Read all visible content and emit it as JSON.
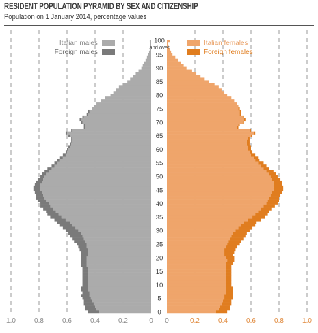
{
  "title": "RESIDENT POPULATION PYRAMID BY SEX AND CITIZENSHIP",
  "subtitle": "Population on 1 January 2014, percentage values",
  "colors": {
    "italian_males": "#ababab",
    "foreign_males": "#7a7a7a",
    "italian_females": "#efa56b",
    "foreign_females": "#e07d1f",
    "text": "#3c3c3c",
    "grid": "#9a9a9a"
  },
  "chart_data": {
    "type": "bar",
    "orientation": "horizontal",
    "title": "RESIDENT POPULATION PYRAMID BY SEX AND CITIZENSHIP",
    "subtitle": "Population on 1 January 2014, percentage values",
    "age_ticks": [
      "0",
      "5",
      "10",
      "15",
      "20",
      "25",
      "30",
      "35",
      "40",
      "45",
      "50",
      "55",
      "60",
      "65",
      "70",
      "75",
      "80",
      "85",
      "90",
      "95",
      "100"
    ],
    "top_age_label": "and over",
    "x_ticks_left": [
      "1.0",
      "0.8",
      "0.6",
      "0.4",
      "0.2",
      "0"
    ],
    "x_ticks_right": [
      "0",
      "0.2",
      "0.4",
      "0.6",
      "0.8",
      "1.0"
    ],
    "xlim": [
      0,
      1.0
    ],
    "grid": "dashed vertical",
    "legend": [
      {
        "side": "left",
        "label": "Italian males",
        "color_key": "italian_males"
      },
      {
        "side": "left",
        "label": "Foreign males",
        "color_key": "foreign_males"
      },
      {
        "side": "right",
        "label": "Italian females",
        "color_key": "italian_females"
      },
      {
        "side": "right",
        "label": "Foreign females",
        "color_key": "foreign_females"
      }
    ],
    "ages": [
      0,
      1,
      2,
      3,
      4,
      5,
      6,
      7,
      8,
      9,
      10,
      11,
      12,
      13,
      14,
      15,
      16,
      17,
      18,
      19,
      20,
      21,
      22,
      23,
      24,
      25,
      26,
      27,
      28,
      29,
      30,
      31,
      32,
      33,
      34,
      35,
      36,
      37,
      38,
      39,
      40,
      41,
      42,
      43,
      44,
      45,
      46,
      47,
      48,
      49,
      50,
      51,
      52,
      53,
      54,
      55,
      56,
      57,
      58,
      59,
      60,
      61,
      62,
      63,
      64,
      65,
      66,
      67,
      68,
      69,
      70,
      71,
      72,
      73,
      74,
      75,
      76,
      77,
      78,
      79,
      80,
      81,
      82,
      83,
      84,
      85,
      86,
      87,
      88,
      89,
      90,
      91,
      92,
      93,
      94,
      95,
      96,
      97,
      98,
      99,
      100
    ],
    "series": [
      {
        "name": "Italian males",
        "side": "left",
        "values": [
          0.37,
          0.39,
          0.4,
          0.41,
          0.42,
          0.43,
          0.44,
          0.44,
          0.45,
          0.45,
          0.45,
          0.45,
          0.45,
          0.45,
          0.45,
          0.45,
          0.45,
          0.46,
          0.46,
          0.46,
          0.46,
          0.45,
          0.45,
          0.45,
          0.46,
          0.46,
          0.47,
          0.48,
          0.49,
          0.5,
          0.52,
          0.54,
          0.56,
          0.58,
          0.61,
          0.64,
          0.66,
          0.68,
          0.7,
          0.72,
          0.73,
          0.75,
          0.76,
          0.77,
          0.78,
          0.79,
          0.79,
          0.79,
          0.78,
          0.77,
          0.76,
          0.75,
          0.73,
          0.71,
          0.69,
          0.67,
          0.65,
          0.63,
          0.61,
          0.6,
          0.59,
          0.58,
          0.57,
          0.56,
          0.56,
          0.58,
          0.6,
          0.56,
          0.47,
          0.47,
          0.49,
          0.5,
          0.48,
          0.45,
          0.44,
          0.42,
          0.41,
          0.39,
          0.36,
          0.33,
          0.29,
          0.27,
          0.25,
          0.23,
          0.2,
          0.17,
          0.15,
          0.13,
          0.11,
          0.09,
          0.07,
          0.06,
          0.05,
          0.04,
          0.03,
          0.02,
          0.015,
          0.01,
          0.008,
          0.005,
          0.01
        ]
      },
      {
        "name": "Foreign males",
        "side": "left",
        "values": [
          0.08,
          0.08,
          0.07,
          0.07,
          0.06,
          0.06,
          0.06,
          0.05,
          0.05,
          0.05,
          0.04,
          0.04,
          0.04,
          0.04,
          0.04,
          0.04,
          0.04,
          0.04,
          0.04,
          0.04,
          0.04,
          0.05,
          0.05,
          0.06,
          0.06,
          0.07,
          0.08,
          0.08,
          0.09,
          0.09,
          0.09,
          0.09,
          0.09,
          0.09,
          0.08,
          0.08,
          0.08,
          0.07,
          0.07,
          0.07,
          0.06,
          0.06,
          0.06,
          0.05,
          0.05,
          0.05,
          0.05,
          0.04,
          0.04,
          0.04,
          0.03,
          0.03,
          0.03,
          0.03,
          0.02,
          0.02,
          0.02,
          0.02,
          0.02,
          0.01,
          0.01,
          0.01,
          0.01,
          0.01,
          0.01,
          0.01,
          0.01,
          0.01,
          0.01,
          0.01,
          0.01,
          0.01,
          0.01,
          0.01,
          0.01,
          0,
          0,
          0,
          0,
          0,
          0,
          0,
          0,
          0,
          0,
          0,
          0,
          0,
          0,
          0,
          0,
          0,
          0,
          0,
          0,
          0,
          0,
          0,
          0,
          0,
          0
        ]
      },
      {
        "name": "Italian females",
        "side": "right",
        "values": [
          0.35,
          0.37,
          0.38,
          0.39,
          0.4,
          0.41,
          0.41,
          0.42,
          0.42,
          0.42,
          0.42,
          0.42,
          0.42,
          0.42,
          0.42,
          0.42,
          0.42,
          0.42,
          0.42,
          0.43,
          0.42,
          0.41,
          0.41,
          0.41,
          0.42,
          0.43,
          0.44,
          0.45,
          0.46,
          0.47,
          0.49,
          0.51,
          0.53,
          0.55,
          0.58,
          0.61,
          0.63,
          0.65,
          0.67,
          0.69,
          0.71,
          0.72,
          0.73,
          0.74,
          0.75,
          0.76,
          0.76,
          0.76,
          0.76,
          0.75,
          0.74,
          0.73,
          0.71,
          0.69,
          0.67,
          0.65,
          0.63,
          0.62,
          0.6,
          0.59,
          0.58,
          0.58,
          0.57,
          0.57,
          0.58,
          0.6,
          0.62,
          0.59,
          0.5,
          0.51,
          0.54,
          0.55,
          0.54,
          0.52,
          0.52,
          0.51,
          0.51,
          0.5,
          0.48,
          0.46,
          0.43,
          0.41,
          0.39,
          0.37,
          0.34,
          0.3,
          0.27,
          0.24,
          0.21,
          0.18,
          0.14,
          0.12,
          0.1,
          0.08,
          0.06,
          0.04,
          0.03,
          0.02,
          0.012,
          0.008,
          0.02
        ]
      },
      {
        "name": "Foreign females",
        "side": "right",
        "values": [
          0.08,
          0.08,
          0.07,
          0.07,
          0.06,
          0.06,
          0.06,
          0.05,
          0.05,
          0.05,
          0.04,
          0.04,
          0.04,
          0.04,
          0.04,
          0.04,
          0.04,
          0.04,
          0.05,
          0.05,
          0.06,
          0.06,
          0.07,
          0.08,
          0.08,
          0.09,
          0.09,
          0.1,
          0.1,
          0.1,
          0.1,
          0.1,
          0.1,
          0.09,
          0.09,
          0.09,
          0.09,
          0.08,
          0.08,
          0.08,
          0.08,
          0.08,
          0.07,
          0.07,
          0.07,
          0.07,
          0.07,
          0.06,
          0.06,
          0.06,
          0.05,
          0.05,
          0.05,
          0.04,
          0.04,
          0.04,
          0.03,
          0.03,
          0.03,
          0.02,
          0.02,
          0.02,
          0.02,
          0.02,
          0.01,
          0.01,
          0.01,
          0.01,
          0.01,
          0.01,
          0.01,
          0.01,
          0.01,
          0.01,
          0.01,
          0.01,
          0,
          0,
          0,
          0,
          0,
          0,
          0,
          0,
          0,
          0,
          0,
          0,
          0,
          0,
          0,
          0,
          0,
          0,
          0,
          0,
          0,
          0,
          0,
          0,
          0
        ]
      }
    ]
  }
}
